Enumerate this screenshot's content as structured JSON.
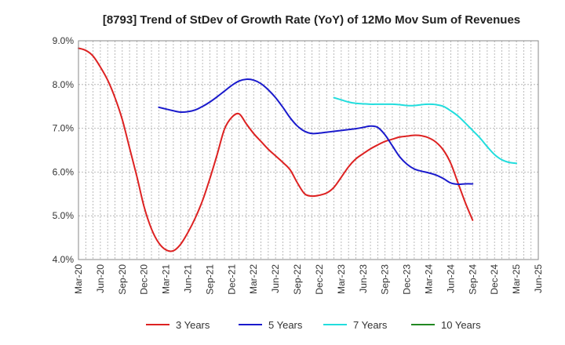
{
  "chart_data": {
    "type": "line",
    "title": "[8793]  Trend of StDev of Growth Rate (YoY) of 12Mo Mov Sum of Revenues",
    "xlabel": "",
    "ylabel": "",
    "ylim": [
      4.0,
      9.0
    ],
    "yticks": [
      4.0,
      5.0,
      6.0,
      7.0,
      8.0,
      9.0
    ],
    "ytick_labels": [
      "4.0%",
      "5.0%",
      "6.0%",
      "7.0%",
      "8.0%",
      "9.0%"
    ],
    "x_range_months": [
      0,
      63
    ],
    "xticks": [
      {
        "label": "Mar-20",
        "m": 0
      },
      {
        "label": "Jun-20",
        "m": 3
      },
      {
        "label": "Sep-20",
        "m": 6
      },
      {
        "label": "Dec-20",
        "m": 9
      },
      {
        "label": "Mar-21",
        "m": 12
      },
      {
        "label": "Jun-21",
        "m": 15
      },
      {
        "label": "Sep-21",
        "m": 18
      },
      {
        "label": "Dec-21",
        "m": 21
      },
      {
        "label": "Mar-22",
        "m": 24
      },
      {
        "label": "Jun-22",
        "m": 27
      },
      {
        "label": "Sep-22",
        "m": 30
      },
      {
        "label": "Dec-22",
        "m": 33
      },
      {
        "label": "Mar-23",
        "m": 36
      },
      {
        "label": "Jun-23",
        "m": 39
      },
      {
        "label": "Sep-23",
        "m": 42
      },
      {
        "label": "Dec-23",
        "m": 45
      },
      {
        "label": "Mar-24",
        "m": 48
      },
      {
        "label": "Jun-24",
        "m": 51
      },
      {
        "label": "Sep-24",
        "m": 54
      },
      {
        "label": "Dec-24",
        "m": 57
      },
      {
        "label": "Mar-25",
        "m": 60
      },
      {
        "label": "Jun-25",
        "m": 63
      }
    ],
    "grid": true,
    "legend_position": "bottom",
    "series": [
      {
        "name": "3 Years",
        "color": "#dd2222",
        "start_m": 0,
        "values": [
          8.83,
          8.78,
          8.65,
          8.4,
          8.1,
          7.7,
          7.2,
          6.55,
          5.9,
          5.2,
          4.7,
          4.38,
          4.22,
          4.2,
          4.35,
          4.62,
          4.95,
          5.35,
          5.85,
          6.4,
          6.98,
          7.25,
          7.33,
          7.1,
          6.88,
          6.7,
          6.52,
          6.37,
          6.22,
          6.05,
          5.75,
          5.5,
          5.45,
          5.47,
          5.52,
          5.65,
          5.88,
          6.12,
          6.3,
          6.42,
          6.53,
          6.62,
          6.7,
          6.75,
          6.8,
          6.82,
          6.84,
          6.83,
          6.78,
          6.68,
          6.5,
          6.2,
          5.75,
          5.3,
          4.9
        ],
        "value_m_start": 0
      },
      {
        "name": "5 Years",
        "color": "#1a1acc",
        "values": [
          7.48,
          7.44,
          7.4,
          7.37,
          7.38,
          7.42,
          7.5,
          7.6,
          7.72,
          7.85,
          7.98,
          8.08,
          8.12,
          8.1,
          8.02,
          7.88,
          7.7,
          7.48,
          7.24,
          7.05,
          6.93,
          6.88,
          6.89,
          6.91,
          6.93,
          6.95,
          6.97,
          6.99,
          7.02,
          7.05,
          7.02,
          6.85,
          6.6,
          6.35,
          6.18,
          6.07,
          6.02,
          5.98,
          5.93,
          5.85,
          5.75,
          5.72,
          5.73,
          5.73
        ],
        "value_m_start": 11
      },
      {
        "name": "7 Years",
        "color": "#22dddd",
        "values": [
          7.7,
          7.65,
          7.6,
          7.57,
          7.56,
          7.55,
          7.55,
          7.55,
          7.55,
          7.54,
          7.52,
          7.52,
          7.54,
          7.55,
          7.54,
          7.5,
          7.4,
          7.28,
          7.12,
          6.95,
          6.78,
          6.58,
          6.4,
          6.28,
          6.22,
          6.2
        ],
        "value_m_start": 35
      },
      {
        "name": "10 Years",
        "color": "#228822",
        "values": [],
        "value_m_start": 0
      }
    ]
  }
}
